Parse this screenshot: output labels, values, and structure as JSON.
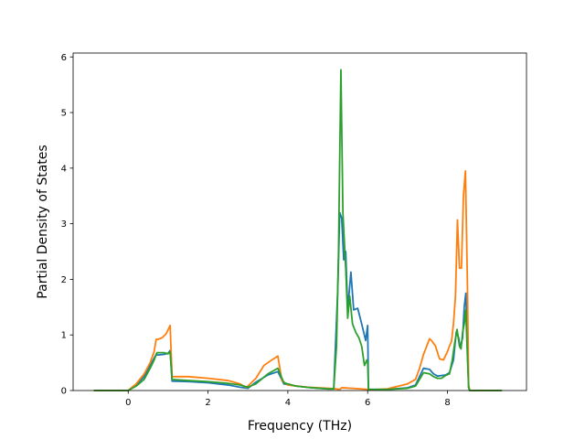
{
  "chart_data": {
    "type": "line",
    "title": "",
    "xlabel": "Frequency (THz)",
    "ylabel": "Partial Density of States",
    "xlim": [
      -1.38,
      9.98
    ],
    "ylim": [
      0,
      6.07
    ],
    "xticks": [
      0,
      2,
      4,
      6,
      8
    ],
    "yticks": [
      0,
      1,
      2,
      3,
      4,
      5,
      6
    ],
    "grid": false,
    "legend": "none",
    "series": [
      {
        "color": "#1f77b4",
        "x": [
          -0.85,
          0.0,
          0.2,
          0.4,
          0.55,
          0.7,
          0.75,
          0.9,
          1.0,
          1.05,
          1.1,
          1.5,
          2.0,
          2.5,
          2.8,
          3.0,
          3.2,
          3.5,
          3.75,
          3.9,
          4.2,
          4.6,
          5.0,
          5.15,
          5.25,
          5.3,
          5.35,
          5.4,
          5.45,
          5.5,
          5.58,
          5.65,
          5.75,
          5.85,
          5.95,
          6.0,
          6.02,
          6.5,
          7.0,
          7.2,
          7.4,
          7.55,
          7.65,
          7.75,
          7.85,
          7.95,
          8.05,
          8.15,
          8.22,
          8.28,
          8.32,
          8.38,
          8.42,
          8.46,
          8.5,
          8.53,
          8.56,
          9.35
        ],
        "y": [
          0,
          0,
          0.1,
          0.25,
          0.45,
          0.65,
          0.64,
          0.65,
          0.67,
          0.72,
          0.17,
          0.16,
          0.14,
          0.1,
          0.06,
          0.04,
          0.15,
          0.28,
          0.34,
          0.12,
          0.08,
          0.05,
          0.03,
          0.03,
          1.8,
          3.2,
          3.1,
          2.35,
          2.5,
          1.45,
          2.13,
          1.45,
          1.48,
          1.2,
          0.9,
          1.17,
          0.02,
          0.02,
          0.05,
          0.1,
          0.4,
          0.38,
          0.3,
          0.26,
          0.27,
          0.28,
          0.32,
          0.55,
          1.05,
          0.95,
          0.77,
          0.95,
          1.5,
          1.75,
          0.8,
          0.05,
          0,
          0
        ]
      },
      {
        "color": "#ff7f0e",
        "x": [
          -0.85,
          0.0,
          0.2,
          0.4,
          0.55,
          0.65,
          0.7,
          0.75,
          0.85,
          0.95,
          1.05,
          1.1,
          1.5,
          2.0,
          2.5,
          2.8,
          2.95,
          3.0,
          3.2,
          3.4,
          3.6,
          3.75,
          3.85,
          4.0,
          4.5,
          5.0,
          5.2,
          5.3,
          5.35,
          5.6,
          6.0,
          6.02,
          6.5,
          7.0,
          7.2,
          7.3,
          7.4,
          7.55,
          7.6,
          7.7,
          7.8,
          7.9,
          8.0,
          8.05,
          8.1,
          8.15,
          8.2,
          8.25,
          8.3,
          8.35,
          8.4,
          8.45,
          8.5,
          8.53,
          8.56,
          9.35
        ],
        "y": [
          0,
          0,
          0.12,
          0.3,
          0.5,
          0.7,
          0.92,
          0.92,
          0.95,
          1.02,
          1.17,
          0.25,
          0.25,
          0.22,
          0.18,
          0.12,
          0.06,
          0.08,
          0.22,
          0.45,
          0.55,
          0.62,
          0.18,
          0.1,
          0.06,
          0.04,
          0.03,
          0.02,
          0.05,
          0.04,
          0.02,
          0.01,
          0.03,
          0.12,
          0.2,
          0.4,
          0.65,
          0.93,
          0.9,
          0.8,
          0.57,
          0.55,
          0.7,
          0.8,
          0.88,
          1.2,
          1.7,
          3.07,
          2.2,
          2.2,
          3.5,
          3.95,
          1.9,
          0.1,
          0,
          0
        ]
      },
      {
        "color": "#2ca02c",
        "x": [
          -0.85,
          0.0,
          0.2,
          0.4,
          0.55,
          0.65,
          0.72,
          0.9,
          1.0,
          1.05,
          1.1,
          1.5,
          2.0,
          2.5,
          2.8,
          3.0,
          3.2,
          3.5,
          3.75,
          3.9,
          4.2,
          4.6,
          5.0,
          5.15,
          5.22,
          5.27,
          5.3,
          5.33,
          5.38,
          5.45,
          5.5,
          5.55,
          5.62,
          5.7,
          5.78,
          5.85,
          5.92,
          5.98,
          6.0,
          6.02,
          6.5,
          7.0,
          7.2,
          7.4,
          7.55,
          7.65,
          7.75,
          7.85,
          7.95,
          8.05,
          8.12,
          8.18,
          8.24,
          8.3,
          8.34,
          8.38,
          8.42,
          8.46,
          8.5,
          8.53,
          8.56,
          9.35
        ],
        "y": [
          0,
          0,
          0.08,
          0.2,
          0.4,
          0.55,
          0.68,
          0.68,
          0.66,
          0.7,
          0.2,
          0.18,
          0.16,
          0.13,
          0.1,
          0.06,
          0.12,
          0.3,
          0.4,
          0.14,
          0.08,
          0.05,
          0.03,
          0.03,
          0.8,
          2.5,
          4.2,
          5.77,
          3.2,
          2.2,
          1.3,
          1.7,
          1.2,
          1.05,
          0.95,
          0.8,
          0.45,
          0.55,
          0.5,
          0.02,
          0.02,
          0.04,
          0.08,
          0.32,
          0.3,
          0.25,
          0.22,
          0.22,
          0.27,
          0.3,
          0.55,
          0.85,
          1.1,
          0.8,
          0.75,
          1.05,
          1.2,
          1.45,
          0.6,
          0.05,
          0,
          0
        ]
      }
    ]
  }
}
